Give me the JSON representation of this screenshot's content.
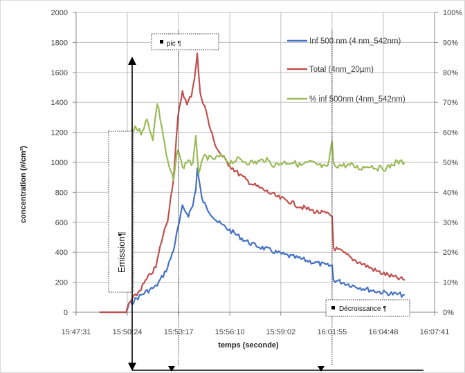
{
  "chart_data": {
    "type": "line",
    "xlabel": "temps (seconde)",
    "ylabel": "concentration (#/cm³)",
    "x_ticks": [
      "15:47:31",
      "15:50:24",
      "15:53:17",
      "15:56:10",
      "15:59:02",
      "16:01:55",
      "16:04:48",
      "16:07:41"
    ],
    "x_range": [
      "15:47:31",
      "16:07:41"
    ],
    "ylim": [
      0,
      2000
    ],
    "y_ticks": [
      "0",
      "200",
      "400",
      "600",
      "800",
      "1000",
      "1200",
      "1400",
      "1600",
      "1800",
      "2000"
    ],
    "y2lim": [
      0,
      100
    ],
    "y2_ticks": [
      "0%",
      "10%",
      "20%",
      "30%",
      "40%",
      "50%",
      "60%",
      "70%",
      "80%",
      "90%",
      "100%"
    ],
    "grid": true,
    "legend_position": "top-right",
    "colors": {
      "inf500": "#4472C4",
      "total": "#C0504D",
      "pct": "#9BBB59"
    },
    "series": [
      {
        "name": "Inf 500 nm (4 nm_542nm)",
        "axis": "left",
        "color": "#4472C4",
        "points": [
          [
            "15:48:50",
            0
          ],
          [
            "15:50:20",
            0
          ],
          [
            "15:50:30",
            50
          ],
          [
            "15:51:00",
            100
          ],
          [
            "15:51:30",
            140
          ],
          [
            "15:52:00",
            170
          ],
          [
            "15:52:20",
            230
          ],
          [
            "15:52:40",
            300
          ],
          [
            "15:53:00",
            420
          ],
          [
            "15:53:15",
            560
          ],
          [
            "15:53:30",
            700
          ],
          [
            "15:53:50",
            650
          ],
          [
            "15:54:05",
            710
          ],
          [
            "15:54:15",
            830
          ],
          [
            "15:54:20",
            960
          ],
          [
            "15:54:35",
            760
          ],
          [
            "15:54:50",
            700
          ],
          [
            "15:55:10",
            650
          ],
          [
            "15:55:30",
            600
          ],
          [
            "15:56:00",
            560
          ],
          [
            "15:56:30",
            520
          ],
          [
            "15:57:00",
            480
          ],
          [
            "15:57:30",
            450
          ],
          [
            "15:58:00",
            430
          ],
          [
            "15:58:30",
            410
          ],
          [
            "15:59:00",
            390
          ],
          [
            "15:59:30",
            375
          ],
          [
            "16:00:00",
            360
          ],
          [
            "16:00:30",
            345
          ],
          [
            "16:01:00",
            330
          ],
          [
            "16:01:40",
            310
          ],
          [
            "16:01:55",
            310
          ],
          [
            "16:02:00",
            215
          ],
          [
            "16:02:30",
            200
          ],
          [
            "16:03:00",
            180
          ],
          [
            "16:03:30",
            165
          ],
          [
            "16:04:00",
            150
          ],
          [
            "16:04:30",
            138
          ],
          [
            "16:05:00",
            128
          ],
          [
            "16:05:30",
            120
          ],
          [
            "16:06:00",
            115
          ]
        ]
      },
      {
        "name": "Total (4nm_20µm)",
        "axis": "left",
        "color": "#C0504D",
        "points": [
          [
            "15:48:50",
            0
          ],
          [
            "15:50:20",
            0
          ],
          [
            "15:50:30",
            60
          ],
          [
            "15:51:00",
            130
          ],
          [
            "15:51:30",
            220
          ],
          [
            "15:52:00",
            300
          ],
          [
            "15:52:20",
            480
          ],
          [
            "15:52:40",
            620
          ],
          [
            "15:53:00",
            900
          ],
          [
            "15:53:15",
            1300
          ],
          [
            "15:53:30",
            1480
          ],
          [
            "15:53:45",
            1380
          ],
          [
            "15:54:00",
            1450
          ],
          [
            "15:54:10",
            1560
          ],
          [
            "15:54:20",
            1720
          ],
          [
            "15:54:30",
            1450
          ],
          [
            "15:54:45",
            1380
          ],
          [
            "15:55:00",
            1250
          ],
          [
            "15:55:15",
            1150
          ],
          [
            "15:55:30",
            1080
          ],
          [
            "15:56:00",
            1000
          ],
          [
            "15:56:30",
            940
          ],
          [
            "15:57:00",
            890
          ],
          [
            "15:57:30",
            850
          ],
          [
            "15:58:00",
            820
          ],
          [
            "15:58:30",
            790
          ],
          [
            "15:59:00",
            760
          ],
          [
            "15:59:30",
            740
          ],
          [
            "16:00:00",
            710
          ],
          [
            "16:00:30",
            690
          ],
          [
            "16:01:00",
            670
          ],
          [
            "16:01:30",
            660
          ],
          [
            "16:01:55",
            640
          ],
          [
            "16:02:00",
            430
          ],
          [
            "16:02:30",
            400
          ],
          [
            "16:03:00",
            360
          ],
          [
            "16:03:30",
            330
          ],
          [
            "16:04:00",
            300
          ],
          [
            "16:04:30",
            270
          ],
          [
            "16:05:00",
            250
          ],
          [
            "16:05:30",
            230
          ],
          [
            "16:06:00",
            215
          ]
        ]
      },
      {
        "name": "% inf 500nm (4nm_542nm)",
        "axis": "right",
        "color": "#9BBB59",
        "points": [
          [
            "15:50:30",
            58
          ],
          [
            "15:50:50",
            62
          ],
          [
            "15:51:10",
            60
          ],
          [
            "15:51:30",
            64
          ],
          [
            "15:51:50",
            58
          ],
          [
            "15:52:05",
            70
          ],
          [
            "15:52:20",
            62
          ],
          [
            "15:52:40",
            50
          ],
          [
            "15:53:00",
            44
          ],
          [
            "15:53:15",
            55
          ],
          [
            "15:53:30",
            48
          ],
          [
            "15:53:50",
            51
          ],
          [
            "15:54:05",
            49
          ],
          [
            "15:54:15",
            58
          ],
          [
            "15:54:25",
            47
          ],
          [
            "15:54:45",
            52
          ],
          [
            "15:55:10",
            51
          ],
          [
            "15:55:40",
            52
          ],
          [
            "15:56:10",
            50
          ],
          [
            "15:56:40",
            51
          ],
          [
            "15:57:10",
            50
          ],
          [
            "15:57:40",
            50
          ],
          [
            "15:58:10",
            51
          ],
          [
            "15:58:40",
            49
          ],
          [
            "15:59:10",
            50
          ],
          [
            "15:59:40",
            50
          ],
          [
            "16:00:10",
            49
          ],
          [
            "16:00:40",
            50
          ],
          [
            "16:01:10",
            49
          ],
          [
            "16:01:40",
            48
          ],
          [
            "16:01:55",
            57
          ],
          [
            "16:02:00",
            49
          ],
          [
            "16:02:30",
            49
          ],
          [
            "16:03:00",
            49
          ],
          [
            "16:03:30",
            48
          ],
          [
            "16:04:00",
            49
          ],
          [
            "16:04:30",
            48
          ],
          [
            "16:05:00",
            48
          ],
          [
            "16:05:30",
            50
          ],
          [
            "16:06:00",
            50
          ]
        ]
      }
    ],
    "annotations": [
      {
        "id": "pic",
        "text": "pic ¶",
        "x": "15:53:17"
      },
      {
        "id": "emission",
        "text": "Emission¶"
      },
      {
        "id": "decroissance",
        "text": "Décroissance ¶",
        "x": "16:01:55"
      }
    ],
    "vertical_markers": [
      "15:53:17",
      "16:01:55"
    ]
  }
}
